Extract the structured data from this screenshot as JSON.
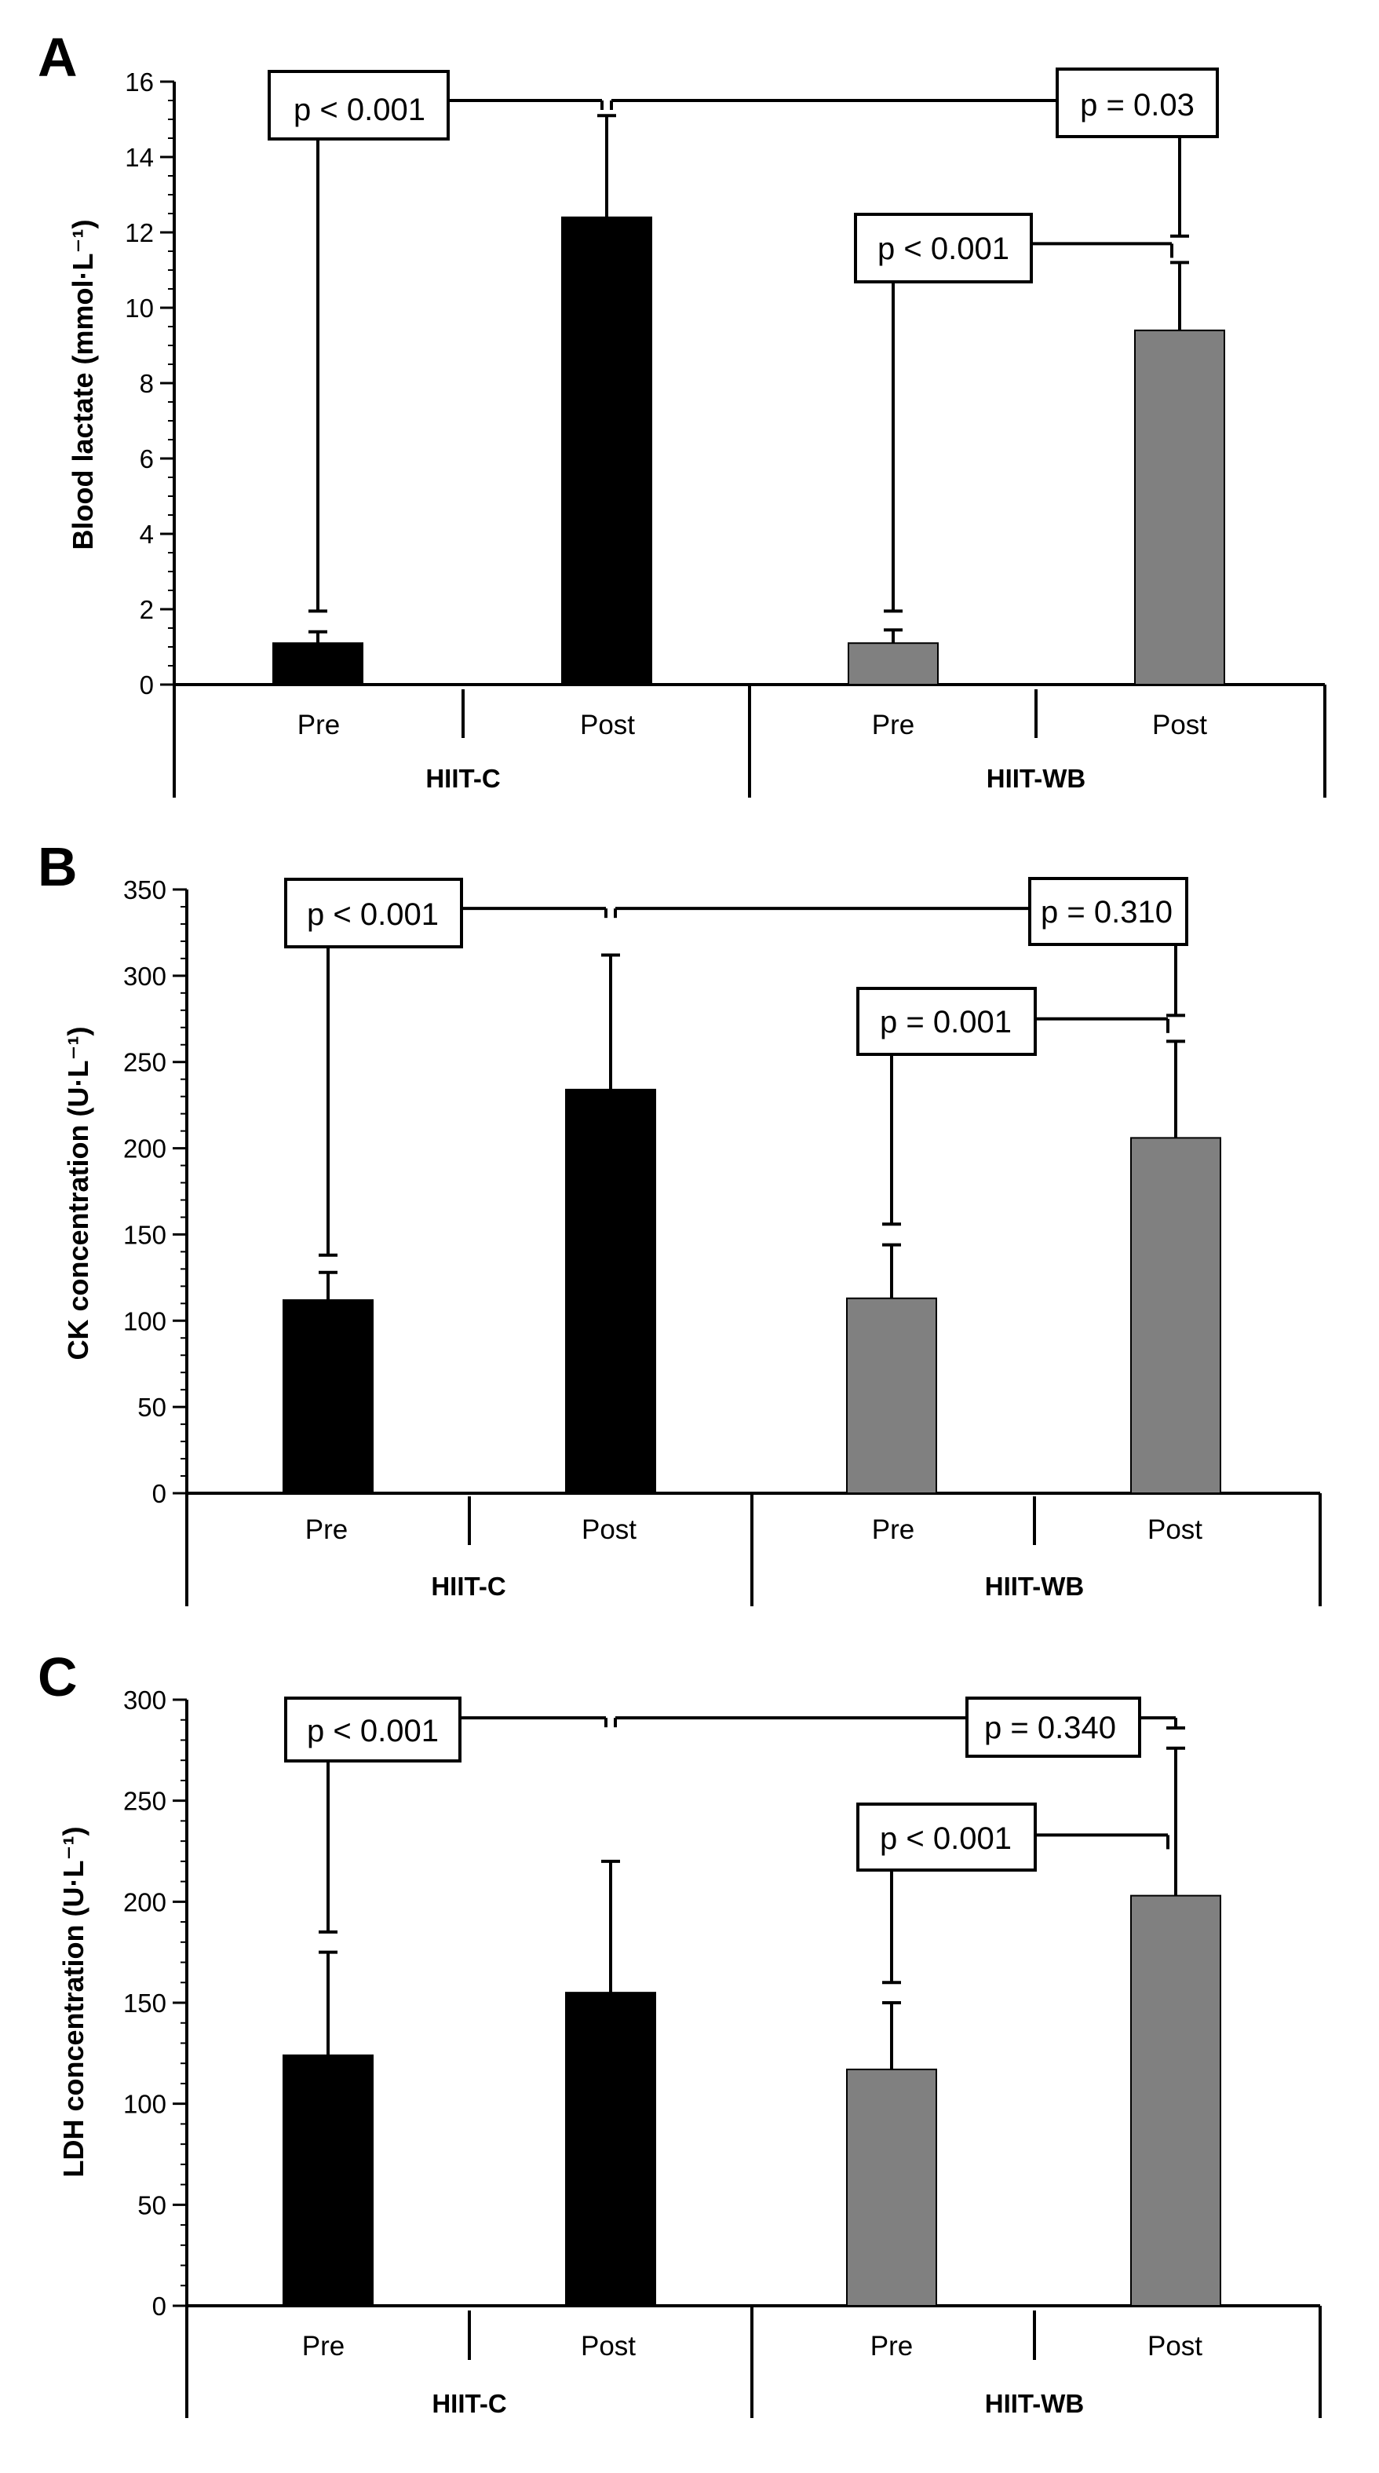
{
  "figure": {
    "background": "#ffffff"
  },
  "colors": {
    "hiit_c": "#000000",
    "hiit_wb": "#808080",
    "axis": "#000000"
  },
  "chart_data": [
    {
      "panel": "A",
      "type": "bar",
      "ylabel": "Blood lactate  (mmol·L⁻¹)",
      "ylim": [
        0,
        16
      ],
      "yticks": [
        0,
        2,
        4,
        6,
        8,
        10,
        12,
        14,
        16
      ],
      "minor_tick_step": 0.5,
      "categories": [
        "Pre",
        "Post",
        "Pre",
        "Post"
      ],
      "groups": [
        {
          "label": "HIIT-C",
          "color": "#000000",
          "values": [
            1.1,
            12.4
          ],
          "errors": [
            0.3,
            2.7
          ]
        },
        {
          "label": "HIIT-WB",
          "color": "#808080",
          "values": [
            1.1,
            9.4
          ],
          "errors": [
            0.35,
            1.8
          ]
        }
      ],
      "comparisons": [
        {
          "label": "p < 0.001",
          "between": "HIIT-C Pre vs Post",
          "pre_top": 1.95,
          "post_top": 15.1,
          "line_y": 15.5
        },
        {
          "label": "p = 0.03",
          "between": "HIIT-C Post vs HIIT-WB Post",
          "left_top": 15.1,
          "right_top": 11.9,
          "line_y": 15.5
        },
        {
          "label": "p < 0.001",
          "between": "HIIT-WB Pre vs Post",
          "pre_top": 1.95,
          "post_top": 11.3,
          "line_y": 11.7
        }
      ]
    },
    {
      "panel": "B",
      "type": "bar",
      "ylabel": "CK concentration (U·L⁻¹)",
      "ylim": [
        0,
        350
      ],
      "yticks": [
        0,
        50,
        100,
        150,
        200,
        250,
        300,
        350
      ],
      "minor_tick_step": 10,
      "categories": [
        "Pre",
        "Post",
        "Pre",
        "Post"
      ],
      "groups": [
        {
          "label": "HIIT-C",
          "color": "#000000",
          "values": [
            112,
            234
          ],
          "errors": [
            16,
            78
          ]
        },
        {
          "label": "HIIT-WB",
          "color": "#808080",
          "values": [
            113,
            206
          ],
          "errors": [
            31,
            56
          ]
        }
      ],
      "comparisons": [
        {
          "label": "p < 0.001",
          "between": "HIIT-C Pre vs Post",
          "pre_top": 138,
          "post_top": 336,
          "line_y": 339
        },
        {
          "label": "p = 0.310",
          "between": "HIIT-C Post vs HIIT-WB Post",
          "left_top": 336,
          "right_top": 277,
          "line_y": 339
        },
        {
          "label": "p = 0.001",
          "between": "HIIT-WB Pre vs Post",
          "pre_top": 156,
          "post_top": 270,
          "line_y": 275
        }
      ]
    },
    {
      "panel": "C",
      "type": "bar",
      "ylabel": "LDH concentration (U·L⁻¹)",
      "ylim": [
        0,
        300
      ],
      "yticks": [
        0,
        50,
        100,
        150,
        200,
        250,
        300
      ],
      "minor_tick_step": 10,
      "categories": [
        "Pre",
        "Post",
        "Pre",
        "Post"
      ],
      "groups": [
        {
          "label": "HIIT-C",
          "color": "#000000",
          "values": [
            124,
            155
          ],
          "errors": [
            51,
            65
          ]
        },
        {
          "label": "HIIT-WB",
          "color": "#808080",
          "values": [
            117,
            203
          ],
          "errors": [
            33,
            73
          ]
        }
      ],
      "comparisons": [
        {
          "label": "p < 0.001",
          "between": "HIIT-C Pre vs Post",
          "pre_top": 185,
          "post_top": 286,
          "line_y": 291
        },
        {
          "label": "p = 0.340",
          "between": "HIIT-C Post vs HIIT-WB Post",
          "left_top": 286,
          "right_top": 286,
          "line_y": 291
        },
        {
          "label": "p < 0.001",
          "between": "HIIT-WB Pre vs Post",
          "pre_top": 160,
          "post_top": 233,
          "line_y": 233
        }
      ]
    }
  ]
}
